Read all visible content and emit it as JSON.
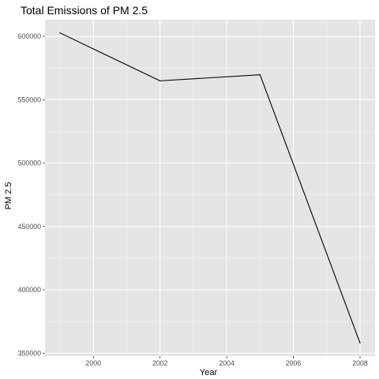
{
  "chart_data": {
    "type": "line",
    "title": "Total Emissions of PM 2.5",
    "xlabel": "Year",
    "ylabel": "PM 2.5",
    "x": [
      1999,
      2002,
      2005,
      2008
    ],
    "series": [
      {
        "values": [
          602700,
          564900,
          569700,
          358000
        ]
      }
    ],
    "xticks": [
      2000,
      2002,
      2004,
      2006,
      2008
    ],
    "yticks": [
      350000,
      400000,
      450000,
      500000,
      550000,
      600000
    ],
    "xlim": [
      1998.55,
      2008.45
    ],
    "ylim": [
      347700,
      613100
    ],
    "grid": true,
    "legend": "none",
    "colors": {
      "panel": "#e5e5e5",
      "grid_major": "#ffffff",
      "grid_minor": "#f2f2f2",
      "line": "#000000",
      "tick": "#4d4d4d"
    }
  }
}
